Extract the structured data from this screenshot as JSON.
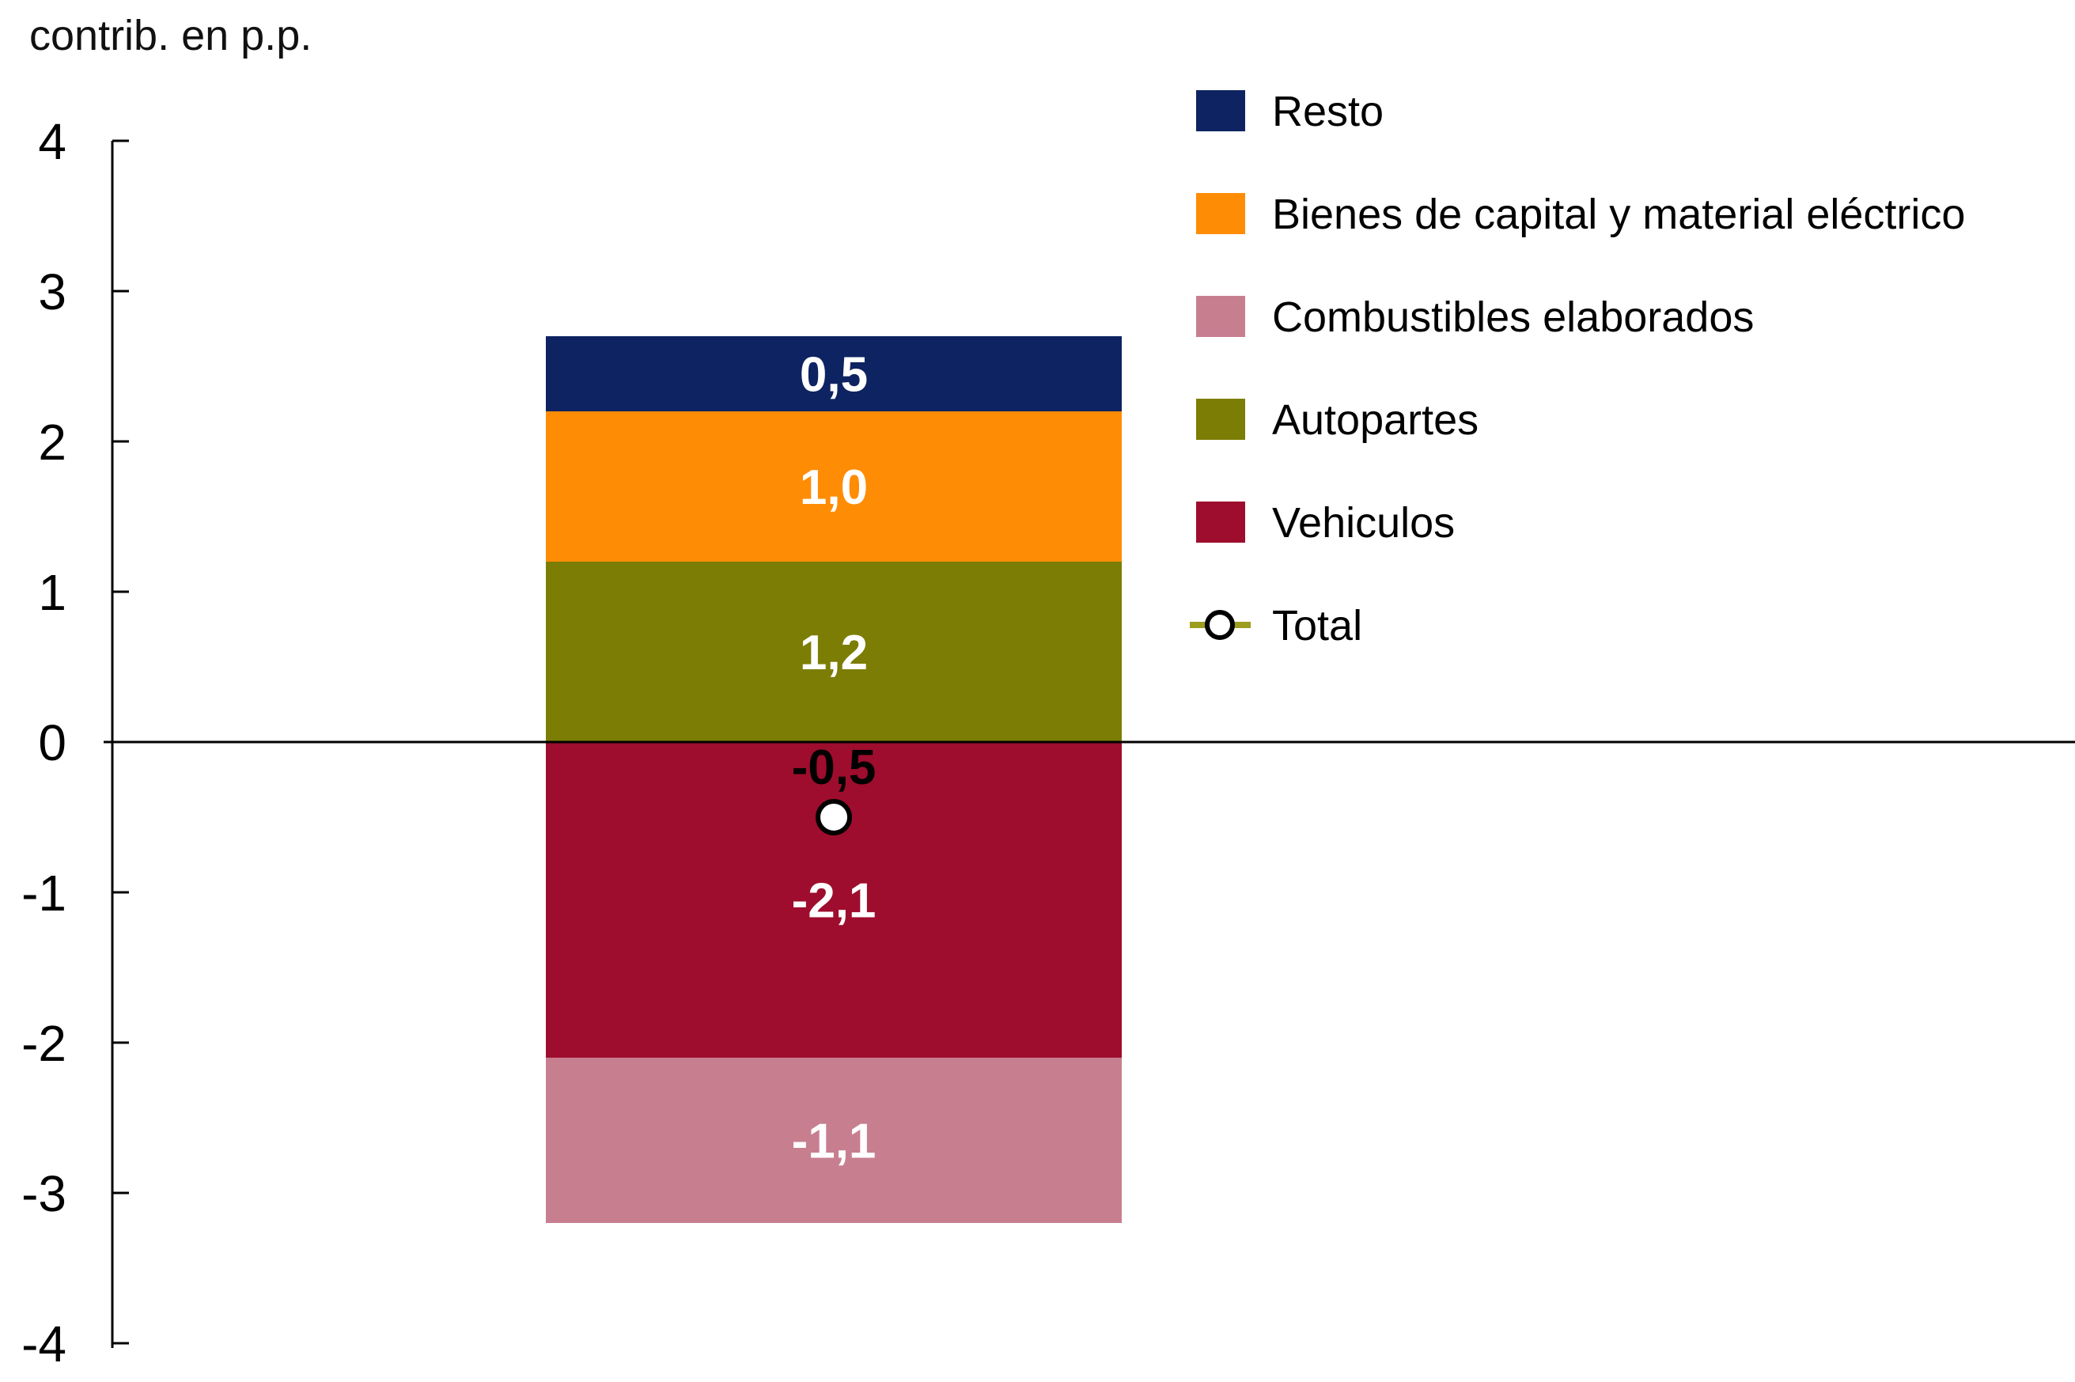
{
  "page": {
    "title": "contrib. en p.p."
  },
  "chart_data": {
    "type": "bar",
    "stacked": true,
    "orientation": "vertical",
    "title": "contrib. en p.p.",
    "ylabel": "contrib. en p.p.",
    "ylim": [
      -4,
      4
    ],
    "ytick_step": 1,
    "yticks": [
      "4",
      "3",
      "2",
      "1",
      "0",
      "-1",
      "-2",
      "-3",
      "-4"
    ],
    "grid": false,
    "decimal_separator": ",",
    "series": [
      {
        "name": "Resto",
        "value": 0.5,
        "label": "0,5",
        "color": "#0e2361",
        "label_color": "#ffffff"
      },
      {
        "name": "Bienes de capital y material eléctrico",
        "value": 1.0,
        "label": "1,0",
        "color": "#ff8c05",
        "label_color": "#ffffff"
      },
      {
        "name": "Autopartes",
        "value": 1.2,
        "label": "1,2",
        "color": "#7c7d04",
        "label_color": "#ffffff"
      },
      {
        "name": "Vehiculos",
        "value": -2.1,
        "label": "-2,1",
        "color": "#9e0d2d",
        "label_color": "#ffffff"
      },
      {
        "name": "Combustibles elaborados",
        "value": -1.1,
        "label": "-1,1",
        "color": "#c77f90",
        "label_color": "#ffffff"
      }
    ],
    "total_series": {
      "name": "Total",
      "value": -0.5,
      "label": "-0,5",
      "label_color": "#000000",
      "marker": "open-circle",
      "marker_fill": "#ffffff",
      "marker_stroke": "#000000",
      "line_color": "#9c9d1f"
    },
    "legend": {
      "position": "upper right",
      "items": [
        {
          "label": "Resto",
          "marker": "square",
          "swatch": "#0e2361"
        },
        {
          "label": "Bienes de capital y material eléctrico",
          "marker": "square",
          "swatch": "#ff8c05"
        },
        {
          "label": "Combustibles elaborados",
          "marker": "square",
          "swatch": "#c77f90"
        },
        {
          "label": "Autopartes",
          "marker": "square",
          "swatch": "#7c7d04"
        },
        {
          "label": "Vehiculos",
          "marker": "square",
          "swatch": "#9e0d2d"
        },
        {
          "label": "Total",
          "marker": "open-circle",
          "marker_fill": "#ffffff",
          "marker_stroke": "#000000",
          "line_color": "#9c9d1f"
        }
      ]
    },
    "axis_color": "#000000",
    "text_color": "#000000"
  }
}
